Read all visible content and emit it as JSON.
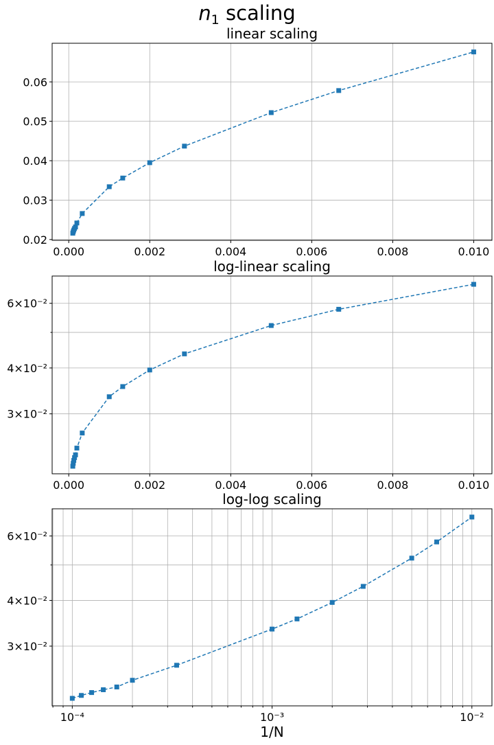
{
  "figure": {
    "title_main": "n",
    "title_sub": "1",
    "title_rest": " scaling"
  },
  "colors": {
    "series": "#1f77b4",
    "grid": "#b0b0b0"
  },
  "chart_data": [
    {
      "type": "line",
      "title": "linear scaling",
      "xscale": "linear",
      "yscale": "linear",
      "xlim": [
        -0.00041,
        0.01045
      ],
      "ylim": [
        0.0198,
        0.0698
      ],
      "xticks": [
        0.0,
        0.002,
        0.004,
        0.006,
        0.008,
        0.01
      ],
      "xtick_labels": [
        "0.000",
        "0.002",
        "0.004",
        "0.006",
        "0.008",
        "0.010"
      ],
      "yticks": [
        0.02,
        0.03,
        0.04,
        0.05,
        0.06
      ],
      "ytick_labels": [
        "0.02",
        "0.03",
        "0.04",
        "0.05",
        "0.06"
      ],
      "grid": true,
      "xlabel": "",
      "ylabel": "",
      "marker": "square",
      "linestyle": "dashed",
      "x": [
        0.0001,
        0.000111,
        0.000125,
        0.000143,
        0.000167,
        0.0002,
        0.000333,
        0.001,
        0.001333,
        0.002,
        0.002857,
        0.005,
        0.006667,
        0.01
      ],
      "y": [
        0.0216,
        0.022,
        0.0224,
        0.0228,
        0.0232,
        0.0242,
        0.0266,
        0.0334,
        0.0356,
        0.0395,
        0.0437,
        0.0522,
        0.0578,
        0.0676
      ]
    },
    {
      "type": "line",
      "title": "log-linear scaling",
      "xscale": "linear",
      "yscale": "log",
      "xlim": [
        -0.00041,
        0.01045
      ],
      "ylim": [
        0.0206,
        0.0712
      ],
      "xticks": [
        0.0,
        0.002,
        0.004,
        0.006,
        0.008,
        0.01
      ],
      "xtick_labels": [
        "0.000",
        "0.002",
        "0.004",
        "0.006",
        "0.008",
        "0.010"
      ],
      "yticks": [
        0.03,
        0.04,
        0.06
      ],
      "ytick_labels": [
        "3×10⁻²",
        "4×10⁻²",
        "6×10⁻²"
      ],
      "yminor_ticks": [
        0.05
      ],
      "grid": true,
      "xlabel": "",
      "ylabel": "",
      "marker": "square",
      "linestyle": "dashed",
      "x": [
        0.0001,
        0.000111,
        0.000125,
        0.000143,
        0.000167,
        0.0002,
        0.000333,
        0.001,
        0.001333,
        0.002,
        0.002857,
        0.005,
        0.006667,
        0.01
      ],
      "y": [
        0.0216,
        0.022,
        0.0224,
        0.0228,
        0.0232,
        0.0242,
        0.0266,
        0.0334,
        0.0356,
        0.0395,
        0.0437,
        0.0522,
        0.0578,
        0.0676
      ]
    },
    {
      "type": "line",
      "title": "log-log scaling",
      "xscale": "log",
      "yscale": "log",
      "xlim": [
        7.93e-05,
        0.0126
      ],
      "ylim": [
        0.0206,
        0.0712
      ],
      "xticks": [
        0.0001,
        0.001,
        0.01
      ],
      "xtick_labels": [
        "10⁻⁴",
        "10⁻³",
        "10⁻²"
      ],
      "xminor_ticks": [
        8e-05,
        9e-05,
        0.0002,
        0.0003,
        0.0004,
        0.0005,
        0.0006,
        0.0007,
        0.0008,
        0.0009,
        0.002,
        0.003,
        0.004,
        0.005,
        0.006,
        0.007,
        0.008,
        0.009
      ],
      "yticks": [
        0.03,
        0.04,
        0.06
      ],
      "ytick_labels": [
        "3×10⁻²",
        "4×10⁻²",
        "6×10⁻²"
      ],
      "yminor_ticks": [
        0.05
      ],
      "grid": true,
      "xlabel": "1/N",
      "ylabel": "",
      "marker": "square",
      "linestyle": "dashed",
      "x": [
        0.0001,
        0.000111,
        0.000125,
        0.000143,
        0.000167,
        0.0002,
        0.000333,
        0.001,
        0.001333,
        0.002,
        0.002857,
        0.005,
        0.006667,
        0.01
      ],
      "y": [
        0.0216,
        0.022,
        0.0224,
        0.0228,
        0.0232,
        0.0242,
        0.0266,
        0.0334,
        0.0356,
        0.0395,
        0.0437,
        0.0522,
        0.0578,
        0.0676
      ]
    }
  ]
}
